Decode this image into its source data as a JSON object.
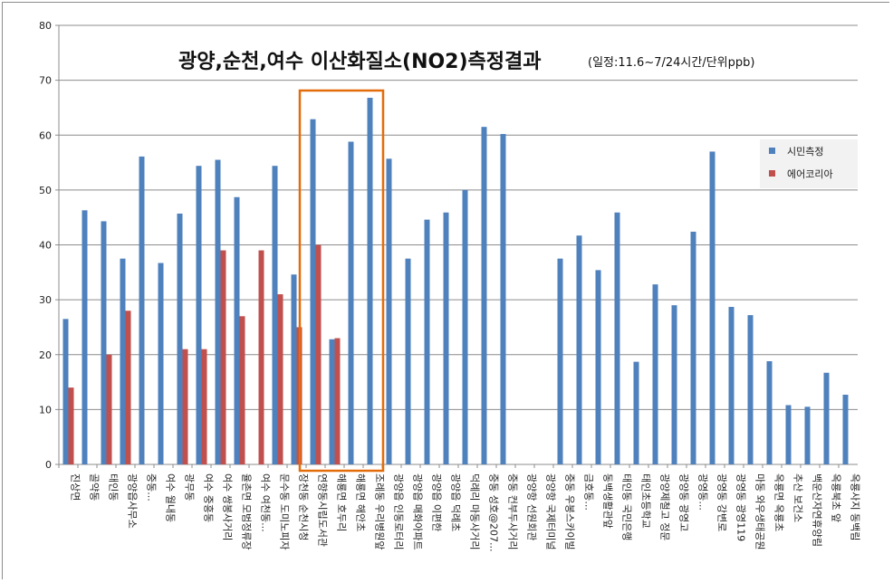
{
  "chart_data": {
    "type": "bar",
    "title": "광양,순천,여수 이산화질소(NO2)측정결과",
    "subtitle": "(일정:11.6~7/24시간/단위ppb)",
    "ylim": [
      0,
      80
    ],
    "yticks": [
      0,
      10,
      20,
      30,
      40,
      50,
      60,
      70,
      80
    ],
    "grid": true,
    "legend_position": "right",
    "colors": {
      "series1": "#4F81BD",
      "series2": "#C0504D",
      "highlight": "#E36C0A"
    },
    "categories": [
      "진상면",
      "골약동",
      "태인동",
      "광양읍사무소",
      "중동...",
      "여수 월내동",
      "광무동",
      "여수 중흥동",
      "여수 쌍봉사거리",
      "율촌면 모범정류장",
      "여수 여천동...",
      "문수동 도미노피자",
      "장천동 순천시청",
      "연향동시립도서관",
      "해룡면 호두리",
      "해룡면 해안초",
      "조례동 우리병원앞",
      "광양읍 인동로터리",
      "광양읍 매화아파트",
      "광양읍 이편한",
      "광양읍 덕례초",
      "덕례리 마동사거리",
      "중동 성호@207...",
      "중동 컨부두사거리",
      "광양항 선원회관",
      "광양항 국제터미널",
      "중동 우봉스카이빌",
      "금호동...",
      "동백생활관앞",
      "태인동 국민은행",
      "태인초등학교",
      "광양제철고 정문",
      "광양동 광영고",
      "광영동...",
      "광영동 강변로",
      "광영동 광영119",
      "마동 와우생태공원",
      "옥룡면 옥룡초",
      "추산 보건소",
      "백운산자연휴양림",
      "옥룡북초 앞",
      "옥룡사지 동백림"
    ],
    "series": [
      {
        "name": "시민측정",
        "values": [
          26.5,
          46.3,
          44.3,
          37.5,
          56.1,
          36.7,
          45.7,
          54.4,
          55.5,
          48.7,
          null,
          54.4,
          34.6,
          62.9,
          22.8,
          58.8,
          66.8,
          55.7,
          37.5,
          44.6,
          45.9,
          50.0,
          61.5,
          60.2,
          null,
          null,
          37.5,
          41.7,
          35.4,
          45.9,
          18.7,
          32.8,
          29.0,
          42.4,
          57.0,
          28.7,
          27.2,
          18.8,
          10.8,
          10.5,
          16.7,
          12.7
        ]
      },
      {
        "name": "에어코리아",
        "values": [
          14,
          null,
          20,
          28,
          null,
          null,
          21,
          21,
          39,
          27,
          39,
          31,
          25,
          40,
          23,
          null,
          null,
          null,
          null,
          null,
          null,
          null,
          null,
          null,
          null,
          null,
          null,
          null,
          null,
          null,
          null,
          null,
          null,
          null,
          null,
          null,
          null,
          null,
          null,
          null,
          null,
          null
        ]
      }
    ],
    "highlight_range": [
      13,
      16
    ]
  }
}
